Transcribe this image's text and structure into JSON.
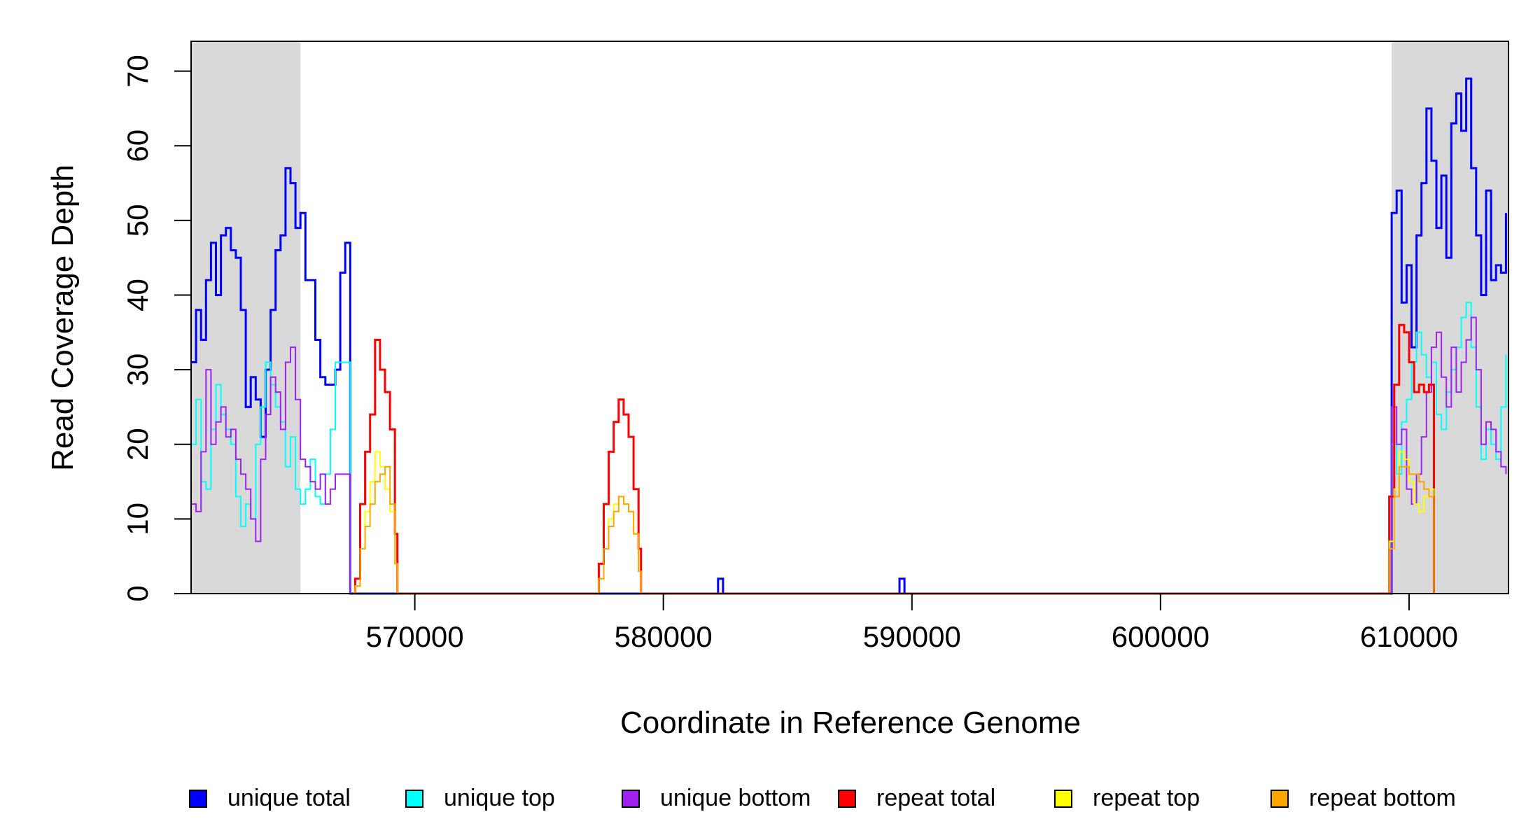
{
  "chart_data": {
    "type": "line",
    "xlabel": "Coordinate in Reference Genome",
    "ylabel": "Read Coverage Depth",
    "xlim": [
      561000,
      614000
    ],
    "ylim": [
      0,
      74
    ],
    "x_ticks": [
      570000,
      580000,
      590000,
      600000,
      610000
    ],
    "x_tick_labels": [
      "570000",
      "580000",
      "590000",
      "600000",
      "610000"
    ],
    "y_ticks": [
      0,
      10,
      20,
      30,
      40,
      50,
      60,
      70
    ],
    "y_tick_labels": [
      "0",
      "10",
      "20",
      "30",
      "40",
      "50",
      "60",
      "70"
    ],
    "shaded_regions": [
      [
        561000,
        565400
      ],
      [
        609300,
        614000
      ]
    ],
    "shade_color": "#d9d9d9",
    "legend_position": "bottom",
    "series": [
      {
        "name": "unique total",
        "color": "#0000ff",
        "width": 3,
        "points": [
          [
            561000,
            31
          ],
          [
            561200,
            38
          ],
          [
            561400,
            34
          ],
          [
            561600,
            42
          ],
          [
            561800,
            47
          ],
          [
            562000,
            40
          ],
          [
            562200,
            48
          ],
          [
            562400,
            49
          ],
          [
            562600,
            46
          ],
          [
            562800,
            45
          ],
          [
            563000,
            38
          ],
          [
            563200,
            25
          ],
          [
            563400,
            29
          ],
          [
            563600,
            26
          ],
          [
            563800,
            21
          ],
          [
            564000,
            30
          ],
          [
            564200,
            38
          ],
          [
            564400,
            46
          ],
          [
            564600,
            48
          ],
          [
            564800,
            57
          ],
          [
            565000,
            55
          ],
          [
            565200,
            49
          ],
          [
            565400,
            51
          ],
          [
            565600,
            42
          ],
          [
            565800,
            42
          ],
          [
            566000,
            34
          ],
          [
            566200,
            29
          ],
          [
            566400,
            28
          ],
          [
            566600,
            28
          ],
          [
            566800,
            30
          ],
          [
            567000,
            43
          ],
          [
            567200,
            47
          ],
          [
            567400,
            0
          ],
          [
            582100,
            0
          ],
          [
            582200,
            2
          ],
          [
            582400,
            0
          ],
          [
            589400,
            0
          ],
          [
            589500,
            2
          ],
          [
            589700,
            0
          ],
          [
            609200,
            0
          ],
          [
            609300,
            51
          ],
          [
            609500,
            54
          ],
          [
            609700,
            39
          ],
          [
            609900,
            44
          ],
          [
            610100,
            33
          ],
          [
            610300,
            48
          ],
          [
            610500,
            55
          ],
          [
            610700,
            65
          ],
          [
            610900,
            58
          ],
          [
            611100,
            49
          ],
          [
            611300,
            56
          ],
          [
            611500,
            45
          ],
          [
            611700,
            63
          ],
          [
            611900,
            67
          ],
          [
            612100,
            62
          ],
          [
            612300,
            69
          ],
          [
            612500,
            57
          ],
          [
            612700,
            48
          ],
          [
            612900,
            40
          ],
          [
            613100,
            54
          ],
          [
            613300,
            42
          ],
          [
            613500,
            44
          ],
          [
            613700,
            43
          ],
          [
            613900,
            51
          ]
        ]
      },
      {
        "name": "unique top",
        "color": "#00ffff",
        "width": 2,
        "points": [
          [
            561000,
            20
          ],
          [
            561200,
            26
          ],
          [
            561400,
            15
          ],
          [
            561600,
            14
          ],
          [
            561800,
            22
          ],
          [
            562000,
            28
          ],
          [
            562200,
            24
          ],
          [
            562400,
            22
          ],
          [
            562600,
            20
          ],
          [
            562800,
            13
          ],
          [
            563000,
            9
          ],
          [
            563200,
            12
          ],
          [
            563400,
            10
          ],
          [
            563600,
            20
          ],
          [
            563800,
            25
          ],
          [
            564000,
            31
          ],
          [
            564200,
            28
          ],
          [
            564400,
            25
          ],
          [
            564600,
            23
          ],
          [
            564800,
            17
          ],
          [
            565000,
            21
          ],
          [
            565200,
            14
          ],
          [
            565400,
            12
          ],
          [
            565600,
            14
          ],
          [
            565800,
            18
          ],
          [
            566000,
            13
          ],
          [
            566200,
            12
          ],
          [
            566400,
            16
          ],
          [
            566600,
            22
          ],
          [
            566800,
            31
          ],
          [
            567400,
            0
          ],
          [
            609200,
            0
          ],
          [
            609300,
            20
          ],
          [
            609500,
            16
          ],
          [
            609700,
            23
          ],
          [
            609900,
            26
          ],
          [
            610100,
            31
          ],
          [
            610300,
            35
          ],
          [
            610500,
            32
          ],
          [
            610700,
            29
          ],
          [
            610900,
            31
          ],
          [
            611100,
            24
          ],
          [
            611300,
            22
          ],
          [
            611500,
            27
          ],
          [
            611700,
            30
          ],
          [
            611900,
            33
          ],
          [
            612100,
            37
          ],
          [
            612300,
            39
          ],
          [
            612500,
            33
          ],
          [
            612700,
            25
          ],
          [
            612900,
            18
          ],
          [
            613100,
            22
          ],
          [
            613300,
            20
          ],
          [
            613500,
            18
          ],
          [
            613700,
            25
          ],
          [
            613900,
            32
          ]
        ]
      },
      {
        "name": "unique bottom",
        "color": "#a020f0",
        "width": 2,
        "points": [
          [
            561000,
            12
          ],
          [
            561200,
            11
          ],
          [
            561400,
            19
          ],
          [
            561600,
            30
          ],
          [
            561800,
            20
          ],
          [
            562000,
            23
          ],
          [
            562200,
            25
          ],
          [
            562400,
            21
          ],
          [
            562600,
            22
          ],
          [
            562800,
            18
          ],
          [
            563000,
            16
          ],
          [
            563200,
            14
          ],
          [
            563400,
            10
          ],
          [
            563600,
            7
          ],
          [
            563800,
            18
          ],
          [
            564000,
            24
          ],
          [
            564200,
            29
          ],
          [
            564400,
            27
          ],
          [
            564600,
            22
          ],
          [
            564800,
            31
          ],
          [
            565000,
            33
          ],
          [
            565200,
            26
          ],
          [
            565400,
            18
          ],
          [
            565600,
            17
          ],
          [
            565800,
            15
          ],
          [
            566000,
            14
          ],
          [
            566200,
            16
          ],
          [
            566400,
            12
          ],
          [
            566600,
            14
          ],
          [
            566800,
            16
          ],
          [
            567400,
            0
          ],
          [
            609200,
            0
          ],
          [
            609300,
            25
          ],
          [
            609500,
            20
          ],
          [
            609700,
            22
          ],
          [
            609900,
            14
          ],
          [
            610100,
            12
          ],
          [
            610300,
            16
          ],
          [
            610500,
            21
          ],
          [
            610700,
            27
          ],
          [
            610900,
            33
          ],
          [
            611100,
            35
          ],
          [
            611300,
            29
          ],
          [
            611500,
            25
          ],
          [
            611700,
            33
          ],
          [
            611900,
            27
          ],
          [
            612100,
            31
          ],
          [
            612300,
            34
          ],
          [
            612500,
            37
          ],
          [
            612700,
            30
          ],
          [
            612900,
            20
          ],
          [
            613100,
            23
          ],
          [
            613300,
            22
          ],
          [
            613500,
            19
          ],
          [
            613700,
            17
          ],
          [
            613900,
            16
          ]
        ]
      },
      {
        "name": "repeat total",
        "color": "#ff0000",
        "width": 3,
        "points": [
          [
            567500,
            0
          ],
          [
            567600,
            2
          ],
          [
            567800,
            12
          ],
          [
            568000,
            19
          ],
          [
            568200,
            24
          ],
          [
            568400,
            34
          ],
          [
            568600,
            30
          ],
          [
            568800,
            27
          ],
          [
            569000,
            22
          ],
          [
            569200,
            8
          ],
          [
            569300,
            0
          ],
          [
            577300,
            0
          ],
          [
            577400,
            4
          ],
          [
            577600,
            12
          ],
          [
            577800,
            19
          ],
          [
            578000,
            23
          ],
          [
            578200,
            26
          ],
          [
            578400,
            24
          ],
          [
            578600,
            21
          ],
          [
            578800,
            14
          ],
          [
            579000,
            6
          ],
          [
            579100,
            0
          ],
          [
            609100,
            0
          ],
          [
            609200,
            13
          ],
          [
            609400,
            28
          ],
          [
            609600,
            36
          ],
          [
            609800,
            35
          ],
          [
            610000,
            31
          ],
          [
            610200,
            27
          ],
          [
            610400,
            28
          ],
          [
            610600,
            27
          ],
          [
            610800,
            28
          ],
          [
            611000,
            0
          ]
        ]
      },
      {
        "name": "repeat top",
        "color": "#ffff00",
        "width": 2,
        "points": [
          [
            567500,
            0
          ],
          [
            567600,
            1
          ],
          [
            567800,
            6
          ],
          [
            568000,
            11
          ],
          [
            568200,
            15
          ],
          [
            568400,
            19
          ],
          [
            568600,
            17
          ],
          [
            568800,
            14
          ],
          [
            569000,
            11
          ],
          [
            569200,
            4
          ],
          [
            569300,
            0
          ],
          [
            577300,
            0
          ],
          [
            577400,
            2
          ],
          [
            577600,
            6
          ],
          [
            577800,
            10
          ],
          [
            578000,
            12
          ],
          [
            578200,
            13
          ],
          [
            578400,
            12
          ],
          [
            578600,
            11
          ],
          [
            578800,
            8
          ],
          [
            579000,
            3
          ],
          [
            579100,
            0
          ],
          [
            609100,
            0
          ],
          [
            609200,
            7
          ],
          [
            609400,
            14
          ],
          [
            609600,
            19
          ],
          [
            609800,
            18
          ],
          [
            610000,
            15
          ],
          [
            610200,
            12
          ],
          [
            610400,
            11
          ],
          [
            610600,
            13
          ],
          [
            610800,
            14
          ],
          [
            611000,
            0
          ]
        ]
      },
      {
        "name": "repeat bottom",
        "color": "#ffa500",
        "width": 2,
        "points": [
          [
            567500,
            0
          ],
          [
            567600,
            1
          ],
          [
            567800,
            6
          ],
          [
            568000,
            9
          ],
          [
            568200,
            12
          ],
          [
            568400,
            15
          ],
          [
            568600,
            16
          ],
          [
            568800,
            17
          ],
          [
            569000,
            12
          ],
          [
            569200,
            4
          ],
          [
            569300,
            0
          ],
          [
            577300,
            0
          ],
          [
            577400,
            2
          ],
          [
            577600,
            6
          ],
          [
            577800,
            9
          ],
          [
            578000,
            11
          ],
          [
            578200,
            13
          ],
          [
            578400,
            12
          ],
          [
            578600,
            11
          ],
          [
            578800,
            8
          ],
          [
            579000,
            3
          ],
          [
            579100,
            0
          ],
          [
            609100,
            0
          ],
          [
            609200,
            6
          ],
          [
            609400,
            13
          ],
          [
            609600,
            17
          ],
          [
            609800,
            17
          ],
          [
            610000,
            16
          ],
          [
            610200,
            16
          ],
          [
            610400,
            15
          ],
          [
            610600,
            14
          ],
          [
            610800,
            13
          ],
          [
            611000,
            0
          ]
        ]
      }
    ]
  }
}
